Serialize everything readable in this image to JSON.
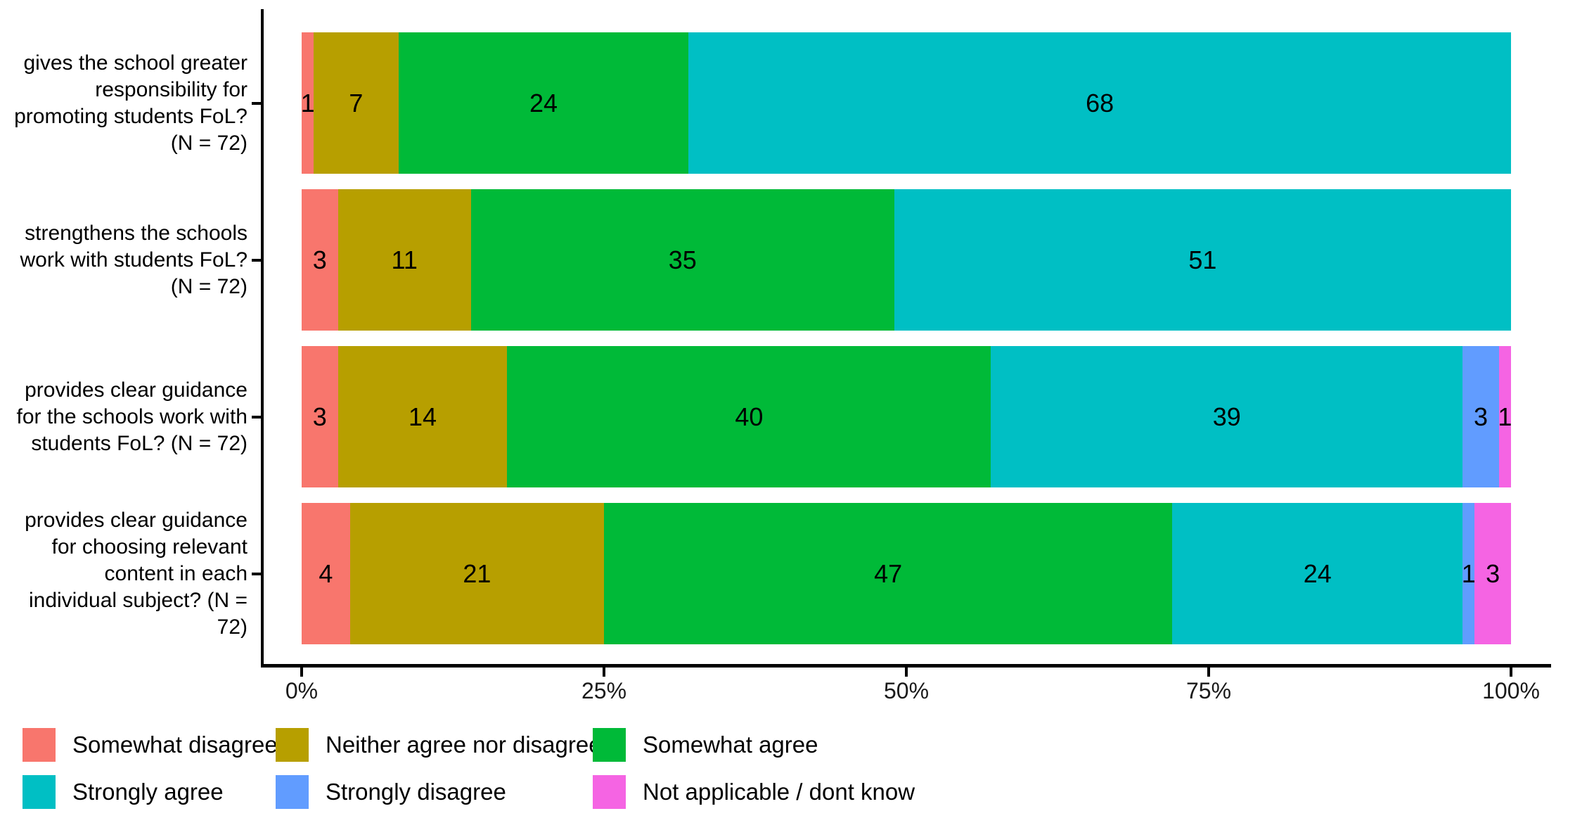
{
  "chart_data": {
    "type": "bar",
    "orientation": "horizontal-stacked",
    "title": "",
    "unit": "percent",
    "grid": false,
    "categories": [
      {
        "lines": [
          "gives the school greater",
          "responsibility for",
          "promoting students FoL?",
          "(N = 72)"
        ]
      },
      {
        "lines": [
          "strengthens the schools",
          "work with students FoL?",
          "(N = 72)"
        ]
      },
      {
        "lines": [
          "provides clear guidance",
          "for the schools work with",
          "students FoL? (N = 72)"
        ]
      },
      {
        "lines": [
          "provides clear guidance",
          "for choosing relevant",
          "content in each",
          "individual subject? (N =",
          "72)"
        ]
      }
    ],
    "series": [
      {
        "name": "Somewhat disagree",
        "color": "#F8766D",
        "values": [
          1,
          3,
          3,
          4
        ]
      },
      {
        "name": "Neither agree nor disagree",
        "color": "#B79F00",
        "values": [
          7,
          11,
          14,
          21
        ]
      },
      {
        "name": "Somewhat agree",
        "color": "#00BA38",
        "values": [
          24,
          35,
          40,
          47
        ]
      },
      {
        "name": "Strongly agree",
        "color": "#00BFC4",
        "values": [
          68,
          51,
          39,
          24
        ]
      },
      {
        "name": "Strongly disagree",
        "color": "#619CFF",
        "values": [
          0,
          0,
          3,
          1
        ]
      },
      {
        "name": "Not applicable / dont know",
        "color": "#F564E3",
        "values": [
          0,
          0,
          1,
          3
        ]
      }
    ],
    "x_axis": {
      "tick_labels": [
        "0%",
        "25%",
        "50%",
        "75%",
        "100%"
      ],
      "tick_values": [
        0,
        25,
        50,
        75,
        100
      ],
      "range": [
        0,
        100
      ]
    },
    "legend": {
      "position": "bottom",
      "columns": 3,
      "rows": 2
    }
  }
}
